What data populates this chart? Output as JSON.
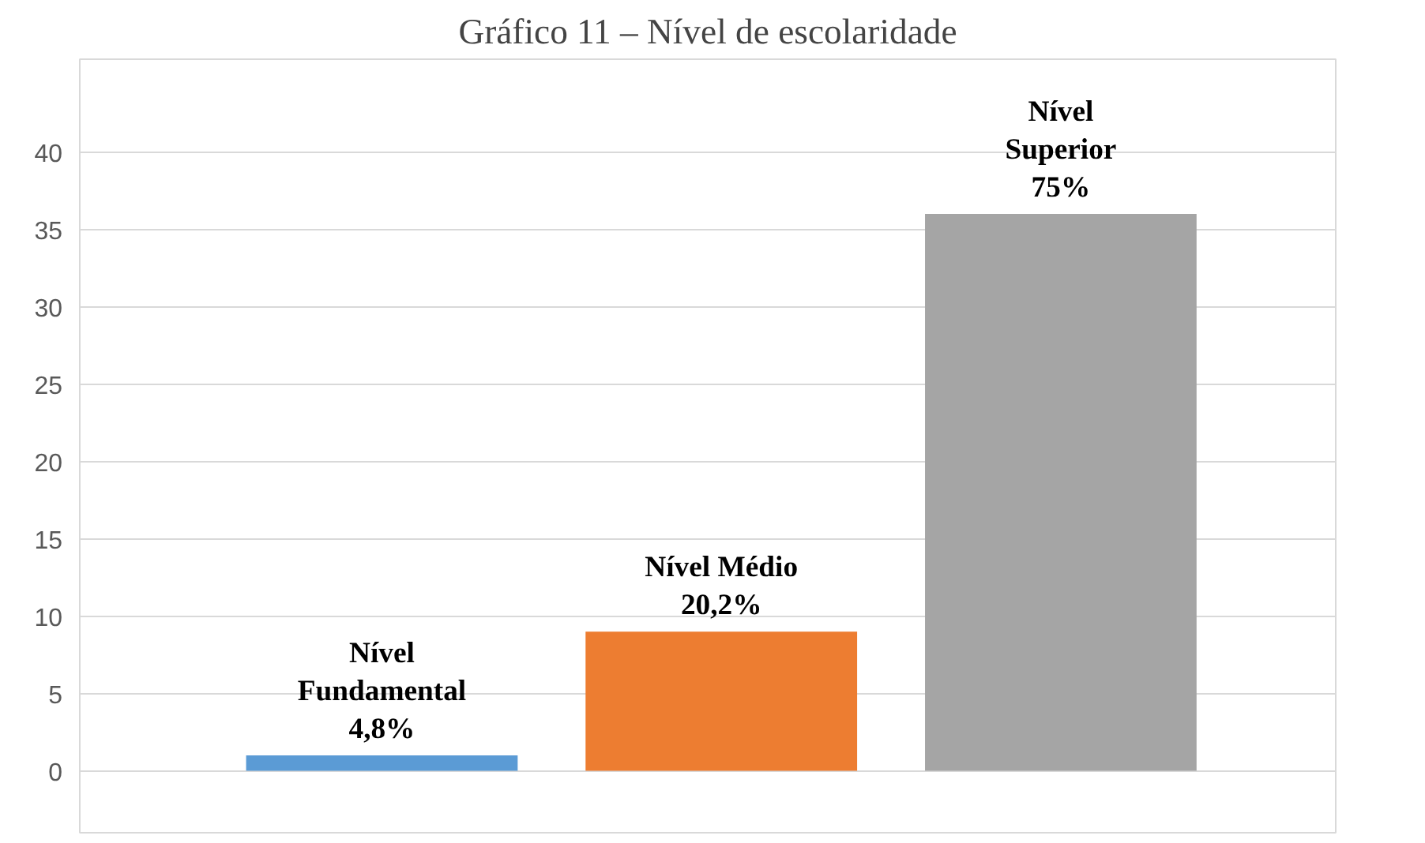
{
  "chart_data": {
    "type": "bar",
    "title": "Gráfico 11 – Nível de escolaridade",
    "categories": [
      "Nível Fundamental",
      "Nível Médio",
      "Nível Superior"
    ],
    "values": [
      1,
      9,
      36
    ],
    "colors": [
      "#5b9bd5",
      "#ed7d31",
      "#a5a5a5"
    ],
    "annotations": [
      {
        "text": "4,8%",
        "x": "Nível Fundamental",
        "y": 1
      },
      {
        "text": "20,2%",
        "x": "Nível Médio",
        "y": 9
      },
      {
        "text": "75%",
        "x": "Nível Superior",
        "y": 36
      }
    ],
    "ylim": [
      -4,
      46
    ],
    "yticks": [
      0,
      5,
      10,
      15,
      20,
      25,
      30,
      35,
      40
    ],
    "grid": "y"
  }
}
